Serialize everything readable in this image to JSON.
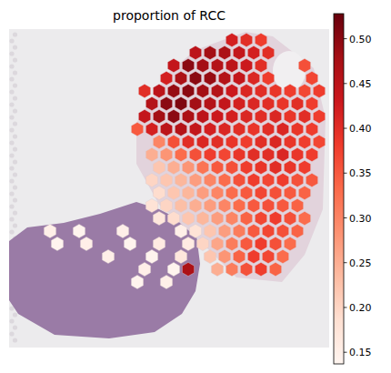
{
  "chart_data": {
    "type": "heatmap",
    "title": "proportion of RCC",
    "tick_labels": false,
    "clim": [
      0.137,
      0.528
    ],
    "cticks": [
      0.15,
      {
        "value": 0.2,
        "label": "0.20"
      },
      0.25,
      {
        "value": 0.3,
        "label": "0.30"
      },
      0.35,
      {
        "value": 0.4,
        "label": "0.40"
      },
      0.45,
      {
        "value": 0.5,
        "label": "0.50"
      }
    ],
    "cells": [
      [
        null,
        null,
        null,
        null,
        null,
        null,
        null,
        null,
        null,
        null,
        null,
        null,
        null,
        0.42,
        0.4,
        0.38,
        null,
        null,
        null,
        null
      ],
      [
        null,
        null,
        null,
        null,
        null,
        null,
        null,
        null,
        null,
        null,
        0.45,
        0.48,
        0.47,
        0.44,
        0.42,
        0.4,
        null,
        null,
        null,
        null
      ],
      [
        null,
        null,
        null,
        null,
        null,
        null,
        null,
        null,
        null,
        0.44,
        0.5,
        0.48,
        0.46,
        0.45,
        0.43,
        0.4,
        null,
        null,
        0.36,
        null
      ],
      [
        null,
        null,
        null,
        null,
        null,
        null,
        null,
        null,
        0.42,
        0.47,
        0.5,
        0.49,
        0.46,
        0.44,
        0.41,
        0.38,
        null,
        null,
        0.37,
        null
      ],
      [
        null,
        null,
        null,
        null,
        null,
        null,
        null,
        0.4,
        0.45,
        0.49,
        0.5,
        0.48,
        0.46,
        0.43,
        0.41,
        0.4,
        0.39,
        0.38,
        0.37,
        0.38
      ],
      [
        null,
        null,
        null,
        null,
        null,
        null,
        null,
        0.46,
        0.5,
        0.51,
        0.48,
        0.46,
        0.44,
        0.42,
        0.41,
        0.4,
        0.39,
        0.4,
        0.38,
        null
      ],
      [
        null,
        null,
        null,
        null,
        null,
        null,
        null,
        0.44,
        0.48,
        0.5,
        0.47,
        0.45,
        0.43,
        0.42,
        0.41,
        0.4,
        0.41,
        0.39,
        0.4,
        0.38
      ],
      [
        null,
        null,
        null,
        null,
        null,
        null,
        0.35,
        0.42,
        0.45,
        0.46,
        0.44,
        0.42,
        0.41,
        0.4,
        0.39,
        0.4,
        0.41,
        0.39,
        0.38,
        null
      ],
      [
        null,
        null,
        null,
        null,
        null,
        null,
        null,
        null,
        0.3,
        0.36,
        0.4,
        0.41,
        0.4,
        0.39,
        0.38,
        0.4,
        0.41,
        0.39,
        0.38,
        0.37
      ],
      [
        null,
        null,
        null,
        null,
        null,
        null,
        null,
        0.25,
        0.28,
        0.33,
        0.36,
        0.38,
        0.37,
        0.39,
        0.4,
        0.4,
        0.41,
        0.39,
        0.38,
        null
      ],
      [
        null,
        null,
        null,
        null,
        null,
        null,
        null,
        null,
        0.22,
        0.25,
        0.28,
        0.32,
        0.35,
        0.36,
        0.38,
        0.39,
        0.4,
        0.39,
        0.38,
        null
      ],
      [
        null,
        null,
        null,
        null,
        null,
        null,
        null,
        0.2,
        0.22,
        0.24,
        0.27,
        0.3,
        0.33,
        0.36,
        0.38,
        0.37,
        0.38,
        0.36,
        0.35,
        null
      ],
      [
        null,
        null,
        null,
        null,
        null,
        null,
        null,
        null,
        0.19,
        0.22,
        0.24,
        0.27,
        0.3,
        0.33,
        0.35,
        0.37,
        0.36,
        0.35,
        0.34,
        null
      ],
      [
        null,
        null,
        null,
        null,
        null,
        null,
        null,
        0.18,
        0.2,
        0.23,
        0.25,
        0.27,
        0.3,
        0.33,
        0.35,
        0.36,
        0.35,
        0.34,
        null,
        null
      ],
      [
        null,
        null,
        null,
        null,
        null,
        null,
        null,
        null,
        0.17,
        0.19,
        0.22,
        0.24,
        0.27,
        0.3,
        0.34,
        0.37,
        0.38,
        0.36,
        0.33,
        null
      ],
      [
        0.15,
        null,
        0.14,
        null,
        null,
        0.15,
        null,
        null,
        null,
        0.15,
        0.18,
        0.22,
        0.27,
        0.31,
        0.35,
        0.37,
        0.36,
        0.34,
        null,
        null
      ],
      [
        null,
        0.14,
        null,
        0.15,
        null,
        null,
        0.14,
        null,
        0.16,
        null,
        0.16,
        0.2,
        0.26,
        0.31,
        0.35,
        0.38,
        0.36,
        0.33,
        null,
        null
      ],
      [
        null,
        null,
        null,
        null,
        0.15,
        null,
        null,
        0.14,
        null,
        0.17,
        null,
        0.22,
        0.28,
        0.34,
        0.38,
        0.37,
        0.33,
        null,
        null,
        null
      ],
      [
        null,
        null,
        null,
        null,
        null,
        null,
        null,
        0.15,
        null,
        0.14,
        0.47,
        null,
        0.25,
        0.31,
        0.36,
        0.38,
        0.34,
        null,
        null,
        null
      ],
      [
        null,
        null,
        null,
        null,
        null,
        null,
        0.14,
        null,
        0.15,
        null,
        null,
        null,
        null,
        null,
        null,
        null,
        null,
        null,
        null,
        null
      ]
    ]
  }
}
